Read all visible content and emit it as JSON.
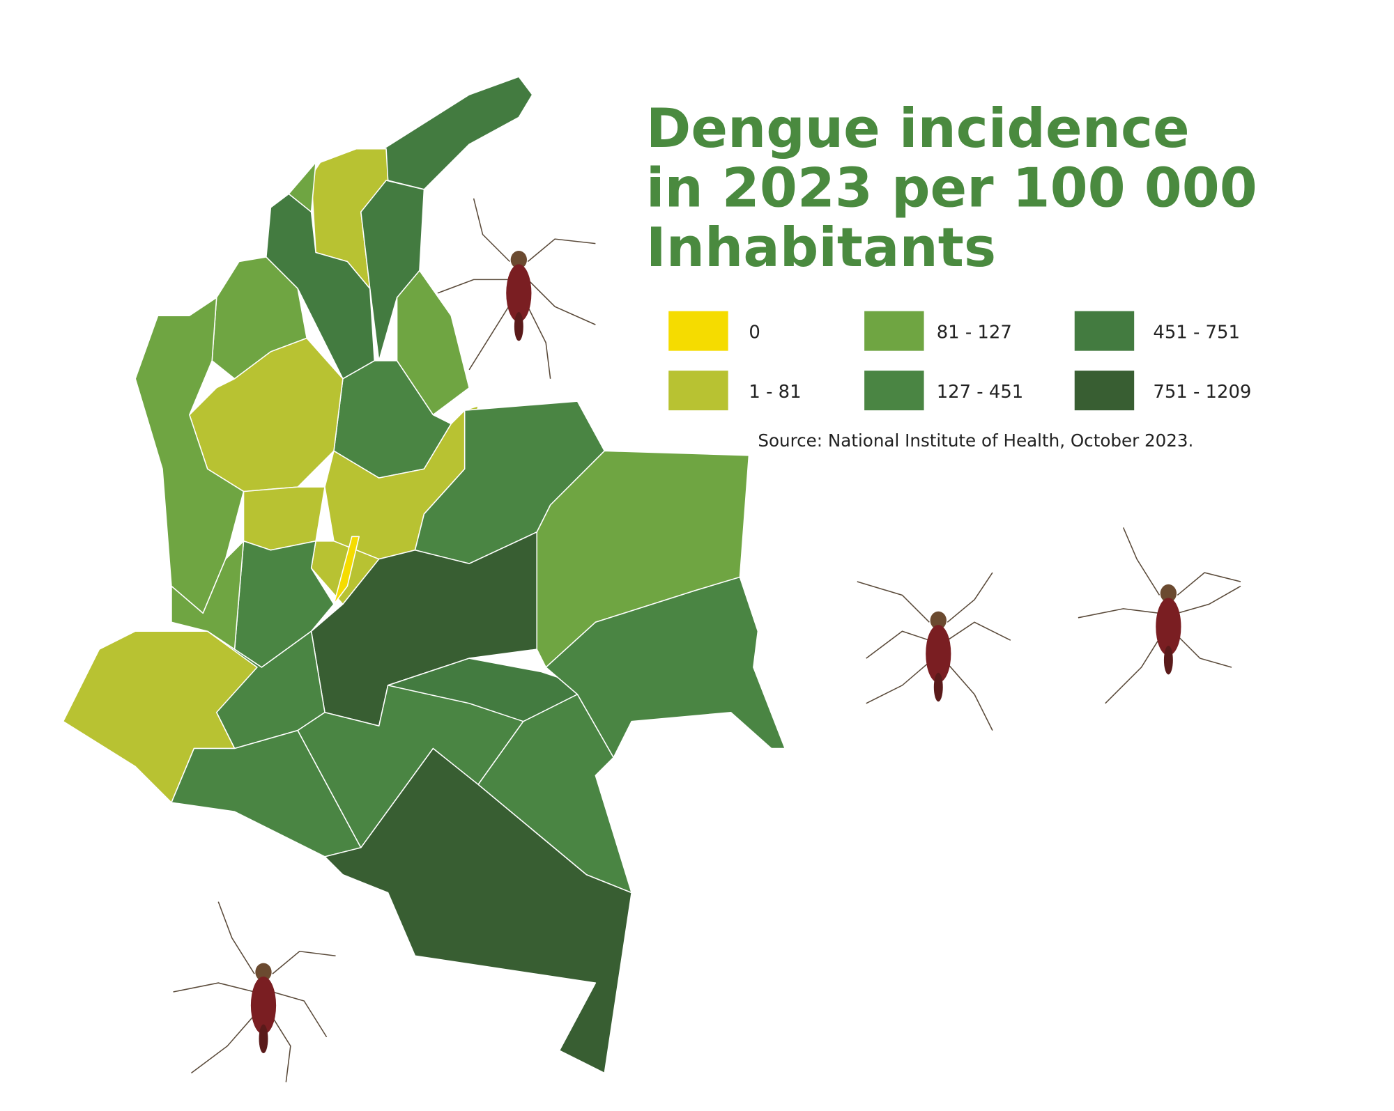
{
  "title_lines": [
    "Dengue incidence",
    "in 2023 per 100 000",
    "Inhabitants"
  ],
  "title_color": "#4a8a3f",
  "legend": [
    {
      "label": "0",
      "color": "#f5dc00"
    },
    {
      "label": "1 - 81",
      "color": "#b8c232"
    },
    {
      "label": "81 - 127",
      "color": "#6fa542"
    },
    {
      "label": "127 - 451",
      "color": "#4a8543"
    },
    {
      "label": "451 - 751",
      "color": "#437b40"
    },
    {
      "label": "751 - 1209",
      "color": "#385e32"
    }
  ],
  "source": "Source: National Institute of Health, October 2023."
}
